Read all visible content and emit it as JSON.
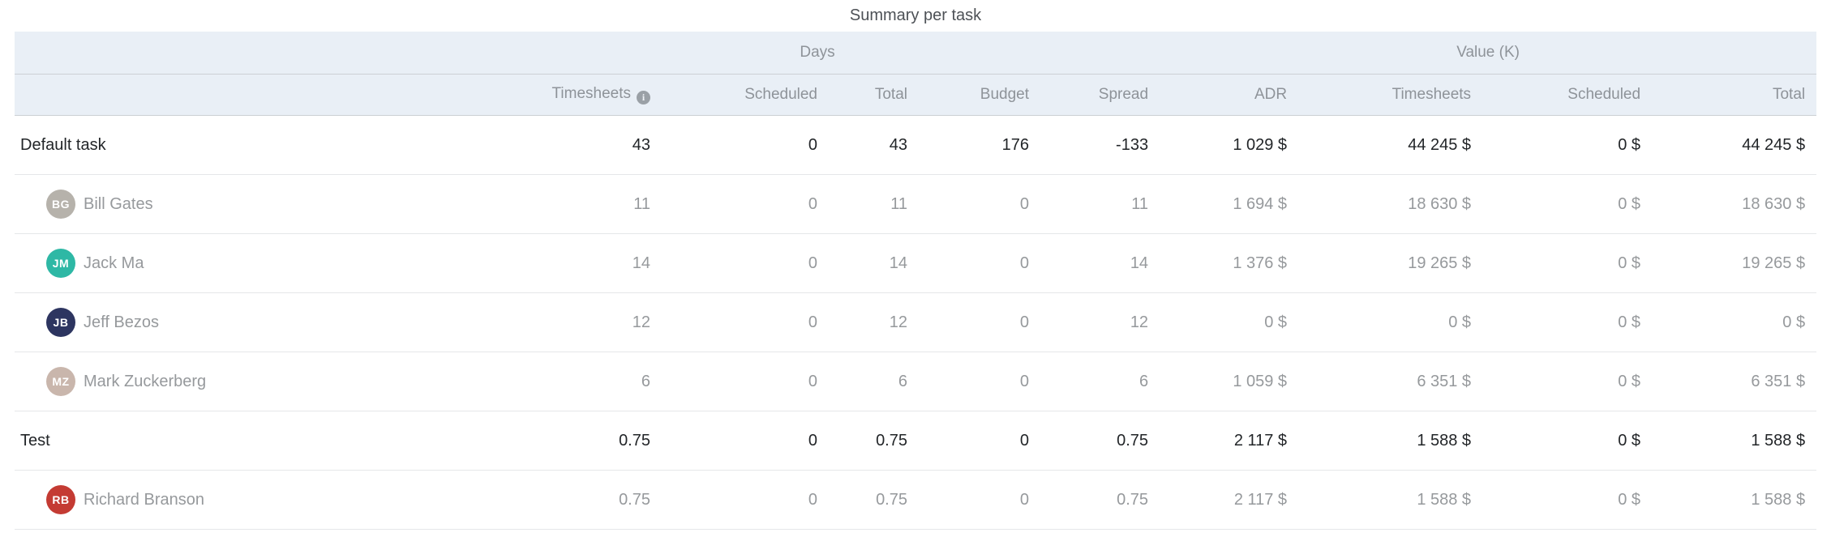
{
  "title": "Summary per task",
  "table": {
    "group_headers": {
      "days": "Days",
      "value": "Value (K)"
    },
    "columns": [
      "Timesheets",
      "Scheduled",
      "Total",
      "Budget",
      "Spread",
      "ADR",
      "Timesheets",
      "Scheduled",
      "Total"
    ],
    "rows": [
      {
        "type": "task",
        "name": "Default task",
        "values": [
          "43",
          "0",
          "43",
          "176",
          "-133",
          "1 029 $",
          "44 245 $",
          "0 $",
          "44 245 $"
        ]
      },
      {
        "type": "person",
        "name": "Bill Gates",
        "initials": "BG",
        "avatar_color": "#b6b2ab",
        "values": [
          "11",
          "0",
          "11",
          "0",
          "11",
          "1 694 $",
          "18 630 $",
          "0 $",
          "18 630 $"
        ]
      },
      {
        "type": "person",
        "name": "Jack Ma",
        "initials": "JM",
        "avatar_color": "#2eb8a5",
        "values": [
          "14",
          "0",
          "14",
          "0",
          "14",
          "1 376 $",
          "19 265 $",
          "0 $",
          "19 265 $"
        ]
      },
      {
        "type": "person",
        "name": "Jeff Bezos",
        "initials": "JB",
        "avatar_color": "#2d3560",
        "values": [
          "12",
          "0",
          "12",
          "0",
          "12",
          "0 $",
          "0 $",
          "0 $",
          "0 $"
        ]
      },
      {
        "type": "person",
        "name": "Mark Zuckerberg",
        "initials": "MZ",
        "avatar_color": "#c9b6ac",
        "values": [
          "6",
          "0",
          "6",
          "0",
          "6",
          "1 059 $",
          "6 351 $",
          "0 $",
          "6 351 $"
        ]
      },
      {
        "type": "task",
        "name": "Test",
        "values": [
          "0.75",
          "0",
          "0.75",
          "0",
          "0.75",
          "2 117 $",
          "1 588 $",
          "0 $",
          "1 588 $"
        ]
      },
      {
        "type": "person",
        "name": "Richard Branson",
        "initials": "RB",
        "avatar_color": "#c43b33",
        "values": [
          "0.75",
          "0",
          "0.75",
          "0",
          "0.75",
          "2 117 $",
          "1 588 $",
          "0 $",
          "1 588 $"
        ]
      }
    ]
  },
  "icons": {
    "info": "i"
  },
  "colors": {
    "header_band": "#e9eff6",
    "header_text": "#8e9399",
    "band_divider": "#ccd0d4",
    "row_divider": "#e5e7e9",
    "task_text": "#222528",
    "person_text": "#96999c",
    "title_text": "#4d5156",
    "info_icon": "#9aa0a6"
  }
}
